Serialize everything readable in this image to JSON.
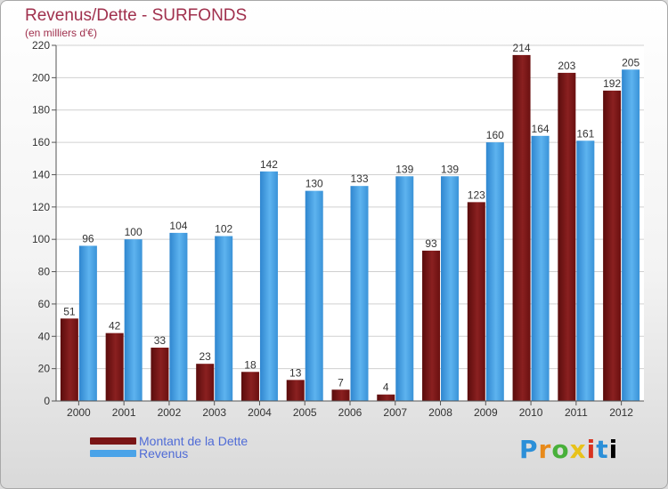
{
  "chart_data": {
    "type": "bar",
    "title": "Revenus/Dette - SURFONDS",
    "subtitle": "(en milliers d'€)",
    "categories": [
      "2000",
      "2001",
      "2002",
      "2003",
      "2004",
      "2005",
      "2006",
      "2007",
      "2008",
      "2009",
      "2010",
      "2011",
      "2012"
    ],
    "series": [
      {
        "name": "Montant de la Dette",
        "color": "#7a1515",
        "values": [
          51,
          42,
          33,
          23,
          18,
          13,
          7,
          4,
          93,
          123,
          214,
          203,
          192
        ]
      },
      {
        "name": "Revenus",
        "color": "#4aa3e8",
        "values": [
          96,
          100,
          104,
          102,
          142,
          130,
          133,
          139,
          139,
          160,
          164,
          161,
          205
        ]
      }
    ],
    "ylim": [
      0,
      220
    ],
    "yticks": [
      0,
      20,
      40,
      60,
      80,
      100,
      120,
      140,
      160,
      180,
      200,
      220
    ],
    "grid": true,
    "legend_position": "bottom-left"
  },
  "legend": {
    "items": [
      {
        "label": "Montant de la Dette",
        "color": "#7a1515"
      },
      {
        "label": "Revenus",
        "color": "#4aa3e8"
      }
    ]
  },
  "logo": {
    "letters": [
      "P",
      "r",
      "o",
      "x",
      "i",
      "t",
      "i"
    ]
  }
}
